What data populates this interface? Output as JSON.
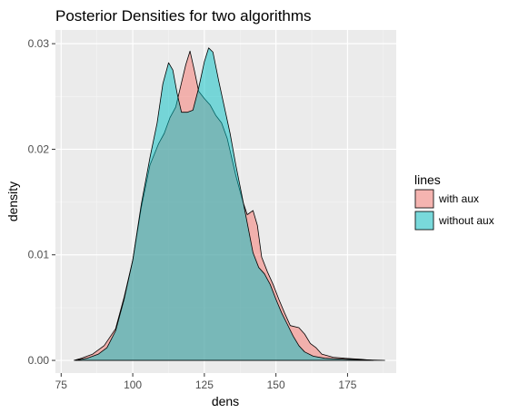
{
  "chart_data": {
    "type": "area",
    "title": "Posterior Densities for two algorithms",
    "xlabel": "dens",
    "ylabel": "density",
    "xlim": [
      73,
      192
    ],
    "ylim": [
      -0.0012,
      0.0313
    ],
    "x_ticks": [
      75,
      100,
      125,
      150,
      175
    ],
    "x_tick_labels": [
      "75",
      "100",
      "125",
      "150",
      "175"
    ],
    "y_ticks": [
      0,
      0.01,
      0.02,
      0.03
    ],
    "y_tick_labels": [
      "0.00",
      "0.01",
      "0.02",
      "0.03"
    ],
    "grid": true,
    "legend": {
      "title": "lines",
      "placement": "right"
    },
    "series": [
      {
        "name": "with aux",
        "fill": "#F8766D",
        "points": [
          [
            79.5,
            0
          ],
          [
            82,
            0.0002
          ],
          [
            86,
            0.0006
          ],
          [
            90,
            0.0014
          ],
          [
            94,
            0.003
          ],
          [
            97,
            0.006
          ],
          [
            100,
            0.0095
          ],
          [
            103,
            0.0145
          ],
          [
            106,
            0.0185
          ],
          [
            109,
            0.0205
          ],
          [
            111,
            0.0215
          ],
          [
            113,
            0.023
          ],
          [
            115,
            0.024
          ],
          [
            117,
            0.0263
          ],
          [
            118.5,
            0.028
          ],
          [
            120,
            0.0293
          ],
          [
            121.5,
            0.0275
          ],
          [
            123,
            0.0255
          ],
          [
            125,
            0.0248
          ],
          [
            127,
            0.0242
          ],
          [
            129,
            0.0232
          ],
          [
            131,
            0.0225
          ],
          [
            133,
            0.021
          ],
          [
            136,
            0.0175
          ],
          [
            138.5,
            0.015
          ],
          [
            140,
            0.0138
          ],
          [
            142,
            0.0142
          ],
          [
            143.5,
            0.0128
          ],
          [
            145,
            0.0098
          ],
          [
            147,
            0.0084
          ],
          [
            149,
            0.0072
          ],
          [
            151,
            0.0058
          ],
          [
            153,
            0.0045
          ],
          [
            155,
            0.0033
          ],
          [
            158,
            0.0031
          ],
          [
            160,
            0.0025
          ],
          [
            162,
            0.0016
          ],
          [
            164,
            0.0012
          ],
          [
            166,
            0.0006
          ],
          [
            170,
            0.0003
          ],
          [
            174,
            0.0002
          ],
          [
            180,
            0.0001
          ],
          [
            184,
            0
          ]
        ]
      },
      {
        "name": "without aux",
        "fill": "#00BFC4",
        "points": [
          [
            80,
            0
          ],
          [
            84,
            0.0002
          ],
          [
            88,
            0.0006
          ],
          [
            91,
            0.0012
          ],
          [
            94,
            0.0028
          ],
          [
            97,
            0.0058
          ],
          [
            100,
            0.0095
          ],
          [
            103,
            0.0148
          ],
          [
            106,
            0.0192
          ],
          [
            108.5,
            0.0225
          ],
          [
            110.5,
            0.0262
          ],
          [
            112.5,
            0.0282
          ],
          [
            114,
            0.0275
          ],
          [
            115.5,
            0.0253
          ],
          [
            117,
            0.0235
          ],
          [
            119,
            0.0235
          ],
          [
            121,
            0.0237
          ],
          [
            123,
            0.0258
          ],
          [
            125,
            0.0283
          ],
          [
            126.5,
            0.0296
          ],
          [
            128,
            0.0292
          ],
          [
            130,
            0.0265
          ],
          [
            132,
            0.024
          ],
          [
            134,
            0.0215
          ],
          [
            136,
            0.0185
          ],
          [
            138,
            0.0158
          ],
          [
            140,
            0.013
          ],
          [
            142,
            0.0102
          ],
          [
            144,
            0.0088
          ],
          [
            146,
            0.0082
          ],
          [
            148,
            0.0072
          ],
          [
            150,
            0.0058
          ],
          [
            152,
            0.0045
          ],
          [
            154,
            0.0034
          ],
          [
            156,
            0.0023
          ],
          [
            158,
            0.0014
          ],
          [
            160,
            0.0008
          ],
          [
            163,
            0.0004
          ],
          [
            167,
            0.0002
          ],
          [
            175,
            0.0001
          ],
          [
            188,
            0
          ]
        ]
      }
    ]
  }
}
